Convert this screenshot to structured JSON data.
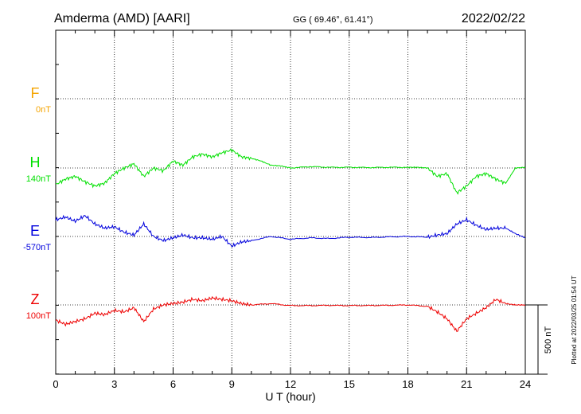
{
  "header": {
    "station": "Amderma (AMD)  [AARI]",
    "coords": "GG ( 69.46°,  61.41°)",
    "date": "2022/02/22"
  },
  "plotted_note": "Plotted at 2022/03/25 01:54 UT",
  "scale_bar_label": "500 nT",
  "chart_data": {
    "type": "line",
    "title": "",
    "xlabel": "U T (hour)",
    "xlim": [
      0,
      24
    ],
    "xticks": [
      "0",
      "3",
      "6",
      "9",
      "12",
      "15",
      "18",
      "21",
      "24"
    ],
    "grid": true,
    "scale_bar_nT": 500,
    "series": [
      {
        "name": "F",
        "baseline_label": "0nT",
        "color": "#f5a400",
        "has_data": false,
        "values": []
      },
      {
        "name": "H",
        "baseline_label": "140nT",
        "color": "#00e000",
        "has_data": true,
        "values": [
          [
            0,
            -120
          ],
          [
            0.5,
            -80
          ],
          [
            1,
            -60
          ],
          [
            1.5,
            -100
          ],
          [
            2,
            -130
          ],
          [
            2.5,
            -110
          ],
          [
            3,
            -40
          ],
          [
            3.5,
            0
          ],
          [
            4,
            30
          ],
          [
            4.5,
            -60
          ],
          [
            5,
            0
          ],
          [
            5.5,
            -20
          ],
          [
            6,
            50
          ],
          [
            6.5,
            20
          ],
          [
            7,
            80
          ],
          [
            7.5,
            100
          ],
          [
            8,
            80
          ],
          [
            8.5,
            110
          ],
          [
            9,
            130
          ],
          [
            9.5,
            80
          ],
          [
            10,
            70
          ],
          [
            10.5,
            50
          ],
          [
            11,
            20
          ],
          [
            11.5,
            15
          ],
          [
            12,
            0
          ],
          [
            13,
            10
          ],
          [
            14,
            5
          ],
          [
            15,
            5
          ],
          [
            16,
            3
          ],
          [
            17,
            5
          ],
          [
            18,
            5
          ],
          [
            18.5,
            5
          ],
          [
            19,
            0
          ],
          [
            19.5,
            -60
          ],
          [
            20,
            -40
          ],
          [
            20.5,
            -180
          ],
          [
            21,
            -130
          ],
          [
            21.5,
            -60
          ],
          [
            22,
            -40
          ],
          [
            22.5,
            -80
          ],
          [
            23,
            -110
          ],
          [
            23.5,
            0
          ],
          [
            24,
            5
          ]
        ]
      },
      {
        "name": "E",
        "baseline_label": "-570nT",
        "color": "#0000dd",
        "has_data": true,
        "values": [
          [
            0,
            120
          ],
          [
            0.5,
            140
          ],
          [
            1,
            110
          ],
          [
            1.5,
            150
          ],
          [
            2,
            90
          ],
          [
            2.5,
            60
          ],
          [
            3,
            70
          ],
          [
            3.5,
            30
          ],
          [
            4,
            10
          ],
          [
            4.5,
            90
          ],
          [
            5,
            0
          ],
          [
            5.5,
            -30
          ],
          [
            6,
            -10
          ],
          [
            6.5,
            10
          ],
          [
            7,
            -10
          ],
          [
            7.5,
            -10
          ],
          [
            8,
            -20
          ],
          [
            8.5,
            0
          ],
          [
            9,
            -70
          ],
          [
            9.5,
            -40
          ],
          [
            10,
            -30
          ],
          [
            11,
            0
          ],
          [
            12,
            -20
          ],
          [
            13,
            -10
          ],
          [
            14,
            -15
          ],
          [
            15,
            -5
          ],
          [
            16,
            -8
          ],
          [
            17,
            -3
          ],
          [
            18,
            0
          ],
          [
            19,
            -5
          ],
          [
            19.5,
            10
          ],
          [
            20,
            20
          ],
          [
            20.5,
            90
          ],
          [
            21,
            120
          ],
          [
            21.5,
            80
          ],
          [
            22,
            50
          ],
          [
            22.5,
            60
          ],
          [
            23,
            60
          ],
          [
            23.5,
            20
          ],
          [
            24,
            -10
          ]
        ]
      },
      {
        "name": "Z",
        "baseline_label": "100nT",
        "color": "#ee0000",
        "has_data": true,
        "values": [
          [
            0,
            -110
          ],
          [
            0.5,
            -140
          ],
          [
            1,
            -120
          ],
          [
            1.5,
            -100
          ],
          [
            2,
            -60
          ],
          [
            2.5,
            -70
          ],
          [
            3,
            -40
          ],
          [
            3.5,
            -50
          ],
          [
            4,
            -20
          ],
          [
            4.5,
            -120
          ],
          [
            5,
            -30
          ],
          [
            5.5,
            0
          ],
          [
            6,
            10
          ],
          [
            6.5,
            20
          ],
          [
            7,
            40
          ],
          [
            7.5,
            30
          ],
          [
            8,
            50
          ],
          [
            8.5,
            40
          ],
          [
            9,
            30
          ],
          [
            9.5,
            10
          ],
          [
            10,
            0
          ],
          [
            11,
            10
          ],
          [
            12,
            -5
          ],
          [
            13,
            -5
          ],
          [
            14,
            -3
          ],
          [
            15,
            -5
          ],
          [
            16,
            -4
          ],
          [
            17,
            -3
          ],
          [
            18,
            0
          ],
          [
            19,
            -10
          ],
          [
            19.5,
            -50
          ],
          [
            20,
            -100
          ],
          [
            20.5,
            -190
          ],
          [
            21,
            -100
          ],
          [
            21.5,
            -60
          ],
          [
            22,
            -20
          ],
          [
            22.5,
            40
          ],
          [
            23,
            10
          ],
          [
            23.5,
            0
          ],
          [
            24,
            0
          ]
        ]
      }
    ]
  }
}
